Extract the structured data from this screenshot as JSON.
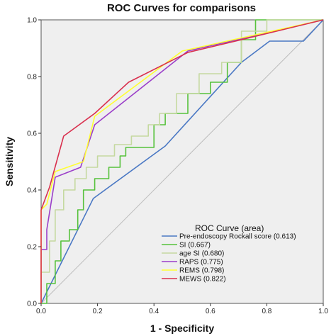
{
  "chart_data": {
    "type": "line",
    "title": "ROC Curves for comparisons",
    "xlabel": "1 - Specificity",
    "ylabel": "Sensitivity",
    "xlim": [
      0,
      1
    ],
    "ylim": [
      0,
      1
    ],
    "xticks": [
      "0.0",
      "0.2",
      "0.4",
      "0.6",
      "0.8",
      "1.0"
    ],
    "yticks": [
      "0.0",
      "0.2",
      "0.4",
      "0.6",
      "0.8",
      "1.0"
    ],
    "grid": false,
    "background": "#efefef",
    "legend": {
      "title": "ROC Curve (area)",
      "placement": "bottom-right"
    },
    "reference_line": {
      "x": [
        0,
        1
      ],
      "y": [
        0,
        1
      ],
      "color": "#bdbdbd"
    },
    "series": [
      {
        "name": "Pre-endoscopy Rockall score (0.613)",
        "color": "#4a78c4",
        "x": [
          0.0,
          0.185,
          0.44,
          0.71,
          0.81,
          0.93,
          1.0
        ],
        "y": [
          0.0,
          0.37,
          0.555,
          0.85,
          0.925,
          0.925,
          1.0
        ]
      },
      {
        "name": "SI (0.667)",
        "color": "#57c23c",
        "x": [
          0.0,
          0.02,
          0.02,
          0.05,
          0.05,
          0.07,
          0.07,
          0.1,
          0.1,
          0.13,
          0.13,
          0.15,
          0.15,
          0.19,
          0.19,
          0.24,
          0.24,
          0.28,
          0.28,
          0.3,
          0.3,
          0.4,
          0.4,
          0.44,
          0.44,
          0.52,
          0.52,
          0.6,
          0.6,
          0.66,
          0.66,
          0.71,
          0.71,
          0.76,
          0.76,
          0.8,
          0.8,
          1.0
        ],
        "y": [
          0.0,
          0.0,
          0.07,
          0.07,
          0.15,
          0.15,
          0.22,
          0.22,
          0.26,
          0.26,
          0.33,
          0.33,
          0.4,
          0.4,
          0.44,
          0.44,
          0.48,
          0.48,
          0.52,
          0.52,
          0.55,
          0.55,
          0.63,
          0.63,
          0.67,
          0.67,
          0.74,
          0.74,
          0.78,
          0.78,
          0.85,
          0.85,
          0.93,
          0.93,
          1.0,
          1.0,
          1.0,
          1.0
        ]
      },
      {
        "name": "age SI (0.680)",
        "color": "#c5d9a0",
        "x": [
          0.0,
          0.0,
          0.03,
          0.03,
          0.05,
          0.05,
          0.08,
          0.08,
          0.12,
          0.12,
          0.16,
          0.16,
          0.2,
          0.2,
          0.26,
          0.26,
          0.32,
          0.32,
          0.38,
          0.38,
          0.42,
          0.42,
          0.48,
          0.48,
          0.56,
          0.56,
          0.64,
          0.64,
          0.71,
          0.71,
          0.8,
          0.8,
          1.0
        ],
        "y": [
          0.0,
          0.11,
          0.11,
          0.22,
          0.22,
          0.33,
          0.33,
          0.4,
          0.4,
          0.44,
          0.44,
          0.48,
          0.48,
          0.52,
          0.52,
          0.56,
          0.56,
          0.59,
          0.59,
          0.63,
          0.63,
          0.67,
          0.67,
          0.74,
          0.74,
          0.81,
          0.81,
          0.85,
          0.85,
          0.96,
          0.96,
          1.0,
          1.0
        ]
      },
      {
        "name": "RAPS (0.775)",
        "color": "#9b3fc9",
        "x": [
          0.0,
          0.0,
          0.02,
          0.02,
          0.05,
          0.14,
          0.19,
          0.52,
          1.0
        ],
        "y": [
          0.0,
          0.19,
          0.19,
          0.26,
          0.445,
          0.48,
          0.63,
          0.89,
          1.0
        ]
      },
      {
        "name": "REMS (0.798)",
        "color": "#ffff33",
        "x": [
          0.0,
          0.0,
          0.02,
          0.05,
          0.15,
          0.19,
          0.5,
          1.0
        ],
        "y": [
          0.0,
          0.33,
          0.35,
          0.465,
          0.5,
          0.66,
          0.89,
          1.0
        ]
      },
      {
        "name": "MEWS (0.822)",
        "color": "#d9304e",
        "x": [
          0.0,
          0.0,
          0.03,
          0.08,
          0.19,
          0.31,
          0.52,
          0.71,
          1.0
        ],
        "y": [
          0.0,
          0.33,
          0.41,
          0.59,
          0.67,
          0.78,
          0.885,
          0.93,
          1.0
        ]
      }
    ]
  }
}
